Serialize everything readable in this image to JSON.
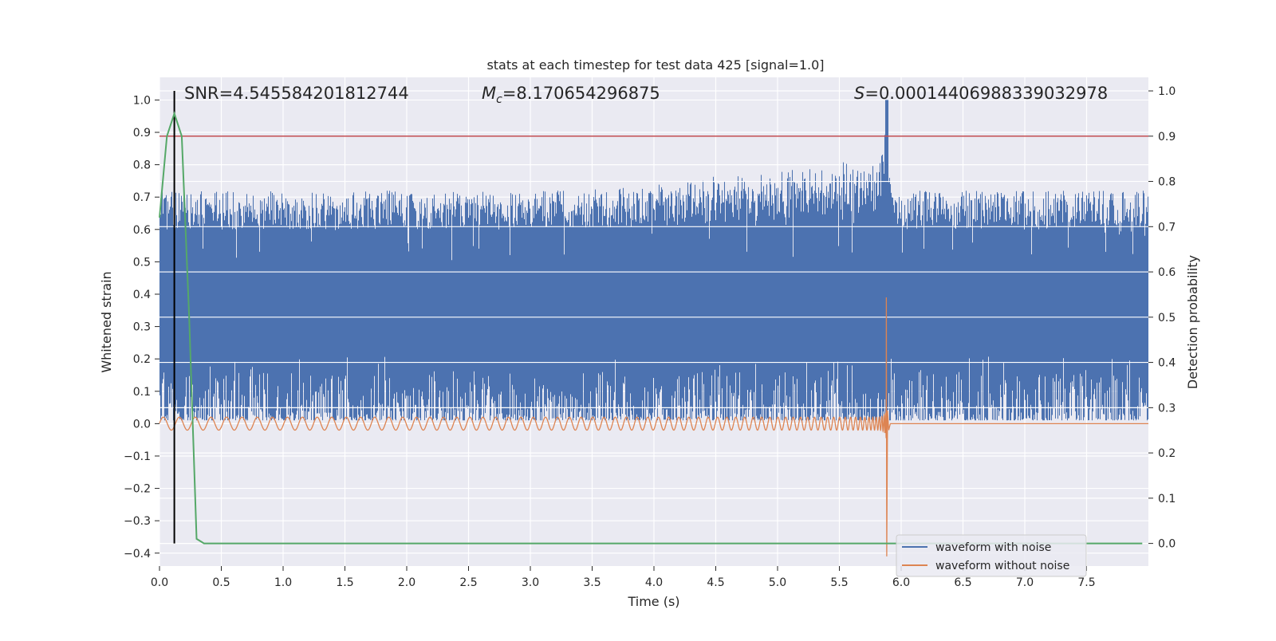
{
  "chart_data": {
    "type": "line",
    "title": "stats at each timestep for test data 425 [signal=1.0]",
    "xlabel": "Time (s)",
    "ylabel": "Whitened strain",
    "ylabel_right": "Detection probability",
    "xlim": [
      0.0,
      8.0
    ],
    "ylim": [
      -0.44,
      1.07
    ],
    "ylim_right": [
      -0.05,
      1.03
    ],
    "x_ticks": [
      "0.0",
      "0.5",
      "1.0",
      "1.5",
      "2.0",
      "2.5",
      "3.0",
      "3.5",
      "4.0",
      "4.5",
      "5.0",
      "5.5",
      "6.0",
      "6.5",
      "7.0",
      "7.5"
    ],
    "y_ticks": [
      "1.0",
      "0.9",
      "0.8",
      "0.7",
      "0.6",
      "0.5",
      "0.4",
      "0.3",
      "0.2",
      "0.1",
      "0.0",
      "−0.1",
      "−0.2",
      "−0.3",
      "−0.4"
    ],
    "y_ticks_right": [
      "1.0",
      "0.9",
      "0.8",
      "0.7",
      "0.6",
      "0.5",
      "0.4",
      "0.3",
      "0.2",
      "0.1",
      "0.0"
    ],
    "grid": true,
    "legend_position": "bottom-right",
    "annotations": {
      "snr": "SNR=4.545584201812744",
      "mc_symbol": "M",
      "mc_sub": "c",
      "mc_value": "=8.170654296875",
      "s_symbol": "S",
      "s_value": "=0.00014406988339032978"
    },
    "threshold_right": 0.9,
    "marker_x": 0.12,
    "merger_time": 5.88,
    "series": [
      {
        "name": "waveform with noise",
        "color": "#4c72b0",
        "axis": "left",
        "band_upper_range": [
          0.6,
          0.72
        ],
        "band_lower_range": [
          0.01,
          0.16
        ],
        "peak_x": 5.88,
        "peak_y": 1.0
      },
      {
        "name": "waveform without noise",
        "color": "#dd8452",
        "axis": "left",
        "start_amplitude": 0.02,
        "peak_y": 0.39,
        "min_y": -0.41,
        "peak_x": 5.88
      },
      {
        "name": "",
        "color": "#55a868",
        "axis": "right",
        "x": [
          0.0,
          0.06,
          0.12,
          0.18,
          0.24,
          0.3,
          0.36,
          7.95
        ],
        "y": [
          0.72,
          0.9,
          0.95,
          0.9,
          0.5,
          0.01,
          0.0,
          0.0
        ]
      }
    ]
  }
}
